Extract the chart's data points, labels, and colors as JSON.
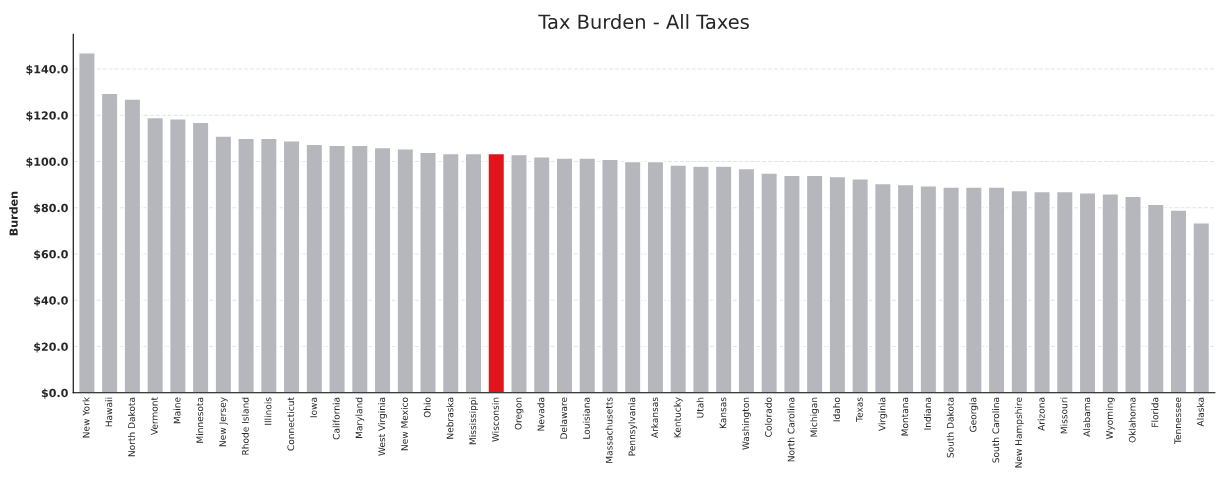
{
  "chart_data": {
    "type": "bar",
    "title": "Tax Burden - All Taxes",
    "ylabel": "Burden",
    "categories": [
      "New York",
      "Hawaii",
      "North Dakota",
      "Vermont",
      "Maine",
      "Minnesota",
      "New Jersey",
      "Rhode Island",
      "Illinois",
      "Connecticut",
      "Iowa",
      "California",
      "Maryland",
      "West Virginia",
      "New Mexico",
      "Ohio",
      "Nebraska",
      "Mississippi",
      "Wisconsin",
      "Oregon",
      "Nevada",
      "Delaware",
      "Louisiana",
      "Massachusetts",
      "Pennsylvania",
      "Arkansas",
      "Kentucky",
      "Utah",
      "Kansas",
      "Washington",
      "Colorado",
      "North Carolina",
      "Michigan",
      "Idaho",
      "Texas",
      "Virginia",
      "Montana",
      "Indiana",
      "South Dakota",
      "Georgia",
      "South Carolina",
      "New Hampshire",
      "Arizona",
      "Missouri",
      "Alabama",
      "Wyoming",
      "Oklahoma",
      "Florida",
      "Tennessee",
      "Alaska"
    ],
    "values": [
      147,
      129.5,
      127,
      119,
      118.5,
      117,
      111,
      110,
      110,
      109,
      107.5,
      107,
      107,
      106,
      105.5,
      104,
      103.5,
      103.5,
      103.5,
      103,
      102,
      101.5,
      101.5,
      101,
      100,
      100,
      98.5,
      98,
      98,
      97,
      95,
      94,
      94,
      93.5,
      92.5,
      90.5,
      90,
      89.5,
      89,
      89,
      89,
      87.5,
      87,
      87,
      86.5,
      86,
      85,
      81.5,
      79,
      73.5
    ],
    "colors": [
      "#b5b7bd",
      "#b5b7bd",
      "#b5b7bd",
      "#b5b7bd",
      "#b5b7bd",
      "#b5b7bd",
      "#b5b7bd",
      "#b5b7bd",
      "#b5b7bd",
      "#b5b7bd",
      "#b5b7bd",
      "#b5b7bd",
      "#b5b7bd",
      "#b5b7bd",
      "#b5b7bd",
      "#b5b7bd",
      "#b5b7bd",
      "#b5b7bd",
      "#e0141c",
      "#b5b7bd",
      "#b5b7bd",
      "#b5b7bd",
      "#b5b7bd",
      "#b5b7bd",
      "#b5b7bd",
      "#b5b7bd",
      "#b5b7bd",
      "#b5b7bd",
      "#b5b7bd",
      "#b5b7bd",
      "#b5b7bd",
      "#b5b7bd",
      "#b5b7bd",
      "#b5b7bd",
      "#b5b7bd",
      "#b5b7bd",
      "#b5b7bd",
      "#b5b7bd",
      "#b5b7bd",
      "#b5b7bd",
      "#b5b7bd",
      "#b5b7bd",
      "#b5b7bd",
      "#b5b7bd",
      "#b5b7bd",
      "#b5b7bd",
      "#b5b7bd",
      "#b5b7bd",
      "#b5b7bd",
      "#b5b7bd"
    ],
    "ylim": [
      0,
      155
    ],
    "yticks": [
      {
        "value": 0,
        "label": "$0.0"
      },
      {
        "value": 20,
        "label": "$20.0"
      },
      {
        "value": 40,
        "label": "$40.0"
      },
      {
        "value": 60,
        "label": "$60.0"
      },
      {
        "value": 80,
        "label": "$80.0"
      },
      {
        "value": 100,
        "label": "$100.0"
      },
      {
        "value": 120,
        "label": "$120.0"
      },
      {
        "value": 140,
        "label": "$140.0"
      }
    ],
    "grid": "y"
  }
}
